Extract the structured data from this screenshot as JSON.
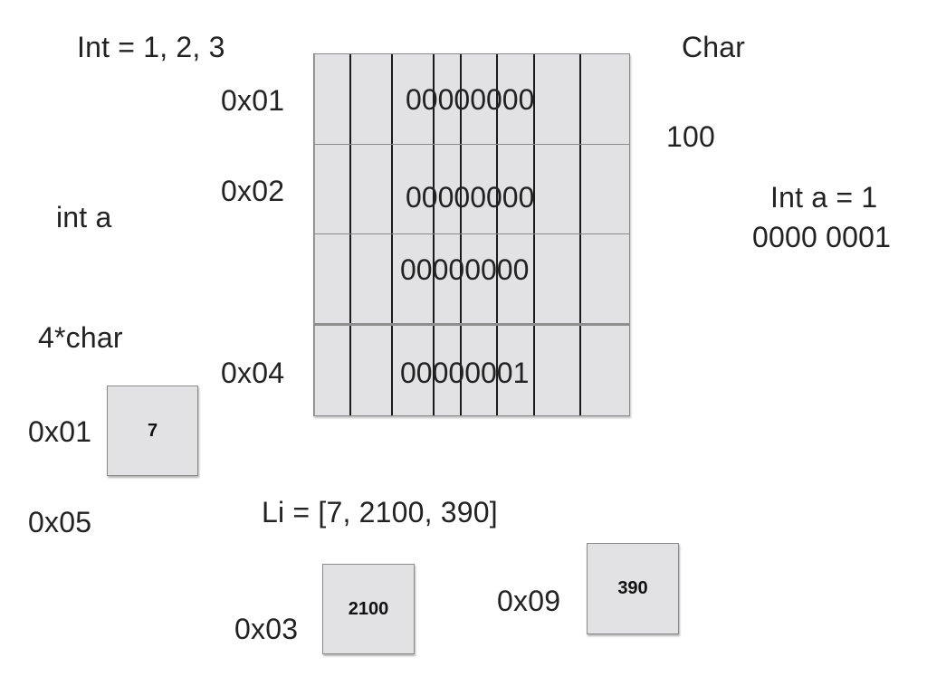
{
  "labels": {
    "int_list": "Int = 1, 2, 3",
    "char": "Char",
    "hundred": "100",
    "int_a_assign": "Int a = 1",
    "int_a_binary": "0000 0001",
    "int_a": "int a",
    "four_char": "4*char",
    "addr_0x01_left": "0x01",
    "addr_0x05": "0x05",
    "li": "Li = [7, 2100, 390]",
    "addr_0x03": "0x03",
    "addr_0x09": "0x09"
  },
  "memory_grid": {
    "addresses": [
      "0x01",
      "0x02",
      "0x04"
    ],
    "rows": [
      "00000000",
      "00000000",
      "00000000",
      "00000001"
    ]
  },
  "list_boxes": {
    "box_7": "7",
    "box_2100": "2100",
    "box_390": "390"
  },
  "colors": {
    "cell_fill": "#e2e2e4",
    "border": "#8a8a8a",
    "text": "#222222"
  }
}
